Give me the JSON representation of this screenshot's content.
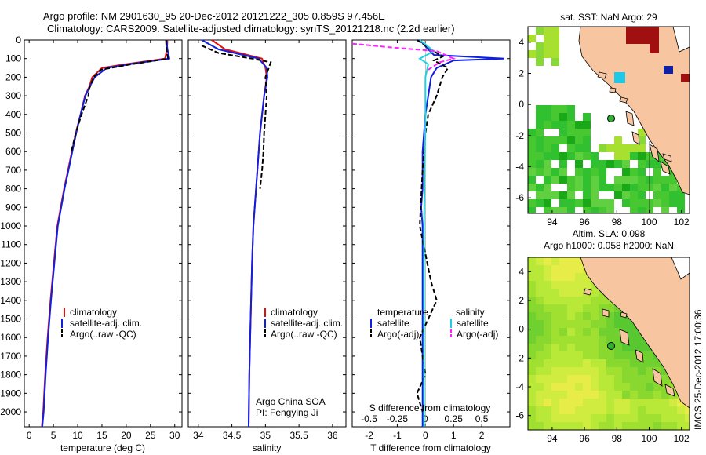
{
  "header": {
    "line1": "Argo profile: NM 2901630_95 20-Dec-2012 20121222_305 0.859S 97.456E",
    "line2": "Climatology: CARS2009. Satellite-adjusted climatology: synTS_20121218.nc (2.2d earlier)"
  },
  "colors": {
    "climatology": "#e01010",
    "satellite": "#1020e0",
    "argo": "#000000",
    "cyan": "#20d0e0",
    "magenta": "#ff20ff",
    "land": "#f7c59f"
  },
  "legend": {
    "climatology": "climatology",
    "satellite_adj": "satellite-adj. clim.",
    "argo_raw": "Argo(..raw -QC)",
    "temperature_head": "temperature",
    "salinity_head": "salinity",
    "satellite": "satellite",
    "argo_adj": "Argo(-adj)"
  },
  "notes": {
    "owner": "Argo China SOA",
    "pi": "PI: Fengying Ji"
  },
  "side": {
    "stamp": "IMOS 25-Dec-2012 17:00:36"
  },
  "chart_data": [
    {
      "type": "line",
      "id": "temperature",
      "xlabel": "temperature (deg C)",
      "xlim": [
        -1,
        31.5
      ],
      "ylim": [
        2080,
        0
      ],
      "xticks": [
        0,
        5,
        10,
        15,
        20,
        25,
        30
      ],
      "yticks": [
        0,
        100,
        200,
        300,
        400,
        500,
        600,
        700,
        800,
        900,
        1000,
        1100,
        1200,
        1300,
        1400,
        1500,
        1600,
        1700,
        1800,
        1900,
        2000
      ],
      "series": [
        {
          "name": "climatology",
          "x": [
            28.5,
            28.4,
            28.0,
            20,
            15.0,
            13.0,
            12.4,
            11.5,
            10.6,
            9.6,
            8.8,
            8.0,
            7.2,
            6.5,
            5.8,
            5.1,
            4.4,
            3.8,
            3.3,
            2.9,
            2.6
          ],
          "y": [
            0,
            50,
            100,
            130,
            150,
            200,
            250,
            300,
            400,
            500,
            600,
            700,
            800,
            900,
            1000,
            1200,
            1400,
            1600,
            1800,
            2000,
            2080
          ]
        },
        {
          "name": "satellite-adj. clim.",
          "x": [
            28.3,
            28.5,
            28.9,
            22,
            16.0,
            13.5,
            12.5,
            11.6,
            10.6,
            9.7,
            8.9,
            8.1,
            7.3,
            6.6,
            5.9,
            5.2,
            4.5,
            3.9,
            3.4,
            3.0,
            2.7
          ],
          "y": [
            0,
            50,
            100,
            125,
            150,
            200,
            250,
            300,
            400,
            500,
            600,
            700,
            800,
            900,
            1000,
            1200,
            1400,
            1600,
            1800,
            2000,
            2080
          ]
        },
        {
          "name": "Argo(..raw -QC)",
          "x": [
            28.2,
            28.3,
            28.6,
            20,
            14.8,
            13.3,
            12.4,
            12.2,
            10.8,
            9.6,
            8.7
          ],
          "y": [
            0,
            50,
            100,
            135,
            160,
            200,
            260,
            300,
            400,
            500,
            600
          ]
        }
      ]
    },
    {
      "type": "line",
      "id": "salinity",
      "xlabel": "salinity",
      "xlim": [
        33.85,
        36.2
      ],
      "ylim": [
        2080,
        0
      ],
      "xticks": [
        34,
        34.5,
        35,
        35.5,
        36
      ],
      "series": [
        {
          "name": "climatology",
          "x": [
            34.2,
            34.4,
            34.95,
            35.0,
            35.02,
            34.98,
            34.95,
            34.92,
            34.9,
            34.88,
            34.86,
            34.84,
            34.82,
            34.8,
            34.78,
            34.76,
            34.75
          ],
          "y": [
            0,
            50,
            100,
            150,
            200,
            300,
            400,
            500,
            600,
            700,
            800,
            900,
            1000,
            1200,
            1500,
            1800,
            2080
          ]
        },
        {
          "name": "satellite-adj. clim.",
          "x": [
            34.05,
            34.3,
            34.9,
            35.02,
            35.03,
            34.98,
            34.95,
            34.92,
            34.9,
            34.88,
            34.86,
            34.84,
            34.82,
            34.8,
            34.78,
            34.76,
            34.75
          ],
          "y": [
            0,
            50,
            100,
            150,
            200,
            300,
            400,
            500,
            600,
            700,
            800,
            900,
            1000,
            1200,
            1500,
            1800,
            2080
          ]
        },
        {
          "name": "Argo(..raw -QC)",
          "x": [
            34.05,
            34.3,
            34.8,
            35.08,
            35.0,
            35.02,
            35.0,
            34.98,
            34.97,
            34.95,
            34.92
          ],
          "y": [
            30,
            70,
            100,
            120,
            200,
            300,
            400,
            500,
            600,
            700,
            800
          ]
        }
      ]
    },
    {
      "type": "line",
      "id": "difference",
      "xlabel": "T difference from climatology",
      "xlabel2": "S difference from climatology",
      "xlim": [
        -2.6,
        3.0
      ],
      "ylim": [
        2080,
        0
      ],
      "xticks": [
        -2,
        -1,
        0,
        1,
        2
      ],
      "xticks2": [
        -0.5,
        -0.25,
        0,
        0.25,
        0.5
      ],
      "series": [
        {
          "name": "temperature satellite",
          "x": [
            -0.2,
            0.1,
            0.3,
            2.8,
            1.0,
            0.4,
            0.2,
            0.1,
            0.0,
            -0.05,
            -0.1,
            -0.1,
            -0.1,
            -0.15,
            -0.1,
            -0.1
          ],
          "y": [
            0,
            50,
            80,
            100,
            110,
            150,
            200,
            300,
            400,
            500,
            600,
            700,
            800,
            900,
            1000,
            2080
          ]
        },
        {
          "name": "temperature Argo(-adj)",
          "x": [
            -0.3,
            0.2,
            0.6,
            0.3,
            0.8,
            0.6,
            0.4,
            0.1,
            0.0,
            -0.1,
            -0.2,
            0.2,
            0.4,
            -0.2,
            0.0,
            -0.3,
            -0.1
          ],
          "y": [
            0,
            50,
            90,
            110,
            150,
            200,
            300,
            400,
            500,
            700,
            1000,
            1300,
            1400,
            1600,
            1800,
            1900,
            2000
          ]
        },
        {
          "name": "salinity satellite",
          "x": [
            -0.2,
            0.3,
            -0.2,
            0.1,
            0.0,
            0.0,
            -0.05,
            -0.05
          ],
          "y": [
            0,
            60,
            100,
            130,
            200,
            400,
            1000,
            2080
          ]
        },
        {
          "name": "salinity Argo(-adj)",
          "x": [
            -2.6,
            -1.2,
            0.4,
            1.0,
            0.5,
            0.3,
            0.1
          ],
          "y": [
            20,
            40,
            60,
            100,
            120,
            140,
            160
          ]
        }
      ]
    },
    {
      "type": "heatmap",
      "id": "sst-map",
      "title": "sat. SST: NaN Argo: 29",
      "xticks": [
        94,
        96,
        98,
        100,
        102
      ],
      "yticks": [
        4,
        2,
        0,
        -2,
        -4,
        -6
      ],
      "xlim": [
        92.5,
        102.5
      ],
      "ylim": [
        -7,
        5
      ],
      "argo_position": [
        97.456,
        -0.859
      ]
    },
    {
      "type": "heatmap",
      "id": "sla-map",
      "title": "Altim. SLA: 0.098",
      "subtitle": "Argo h1000: 0.058 h2000: NaN",
      "xticks": [
        94,
        96,
        98,
        100,
        102
      ],
      "yticks": [
        4,
        2,
        0,
        -2,
        -4,
        -6
      ],
      "xlim": [
        92.5,
        102.5
      ],
      "ylim": [
        -7,
        5
      ],
      "argo_position": [
        97.456,
        -0.859
      ]
    }
  ]
}
